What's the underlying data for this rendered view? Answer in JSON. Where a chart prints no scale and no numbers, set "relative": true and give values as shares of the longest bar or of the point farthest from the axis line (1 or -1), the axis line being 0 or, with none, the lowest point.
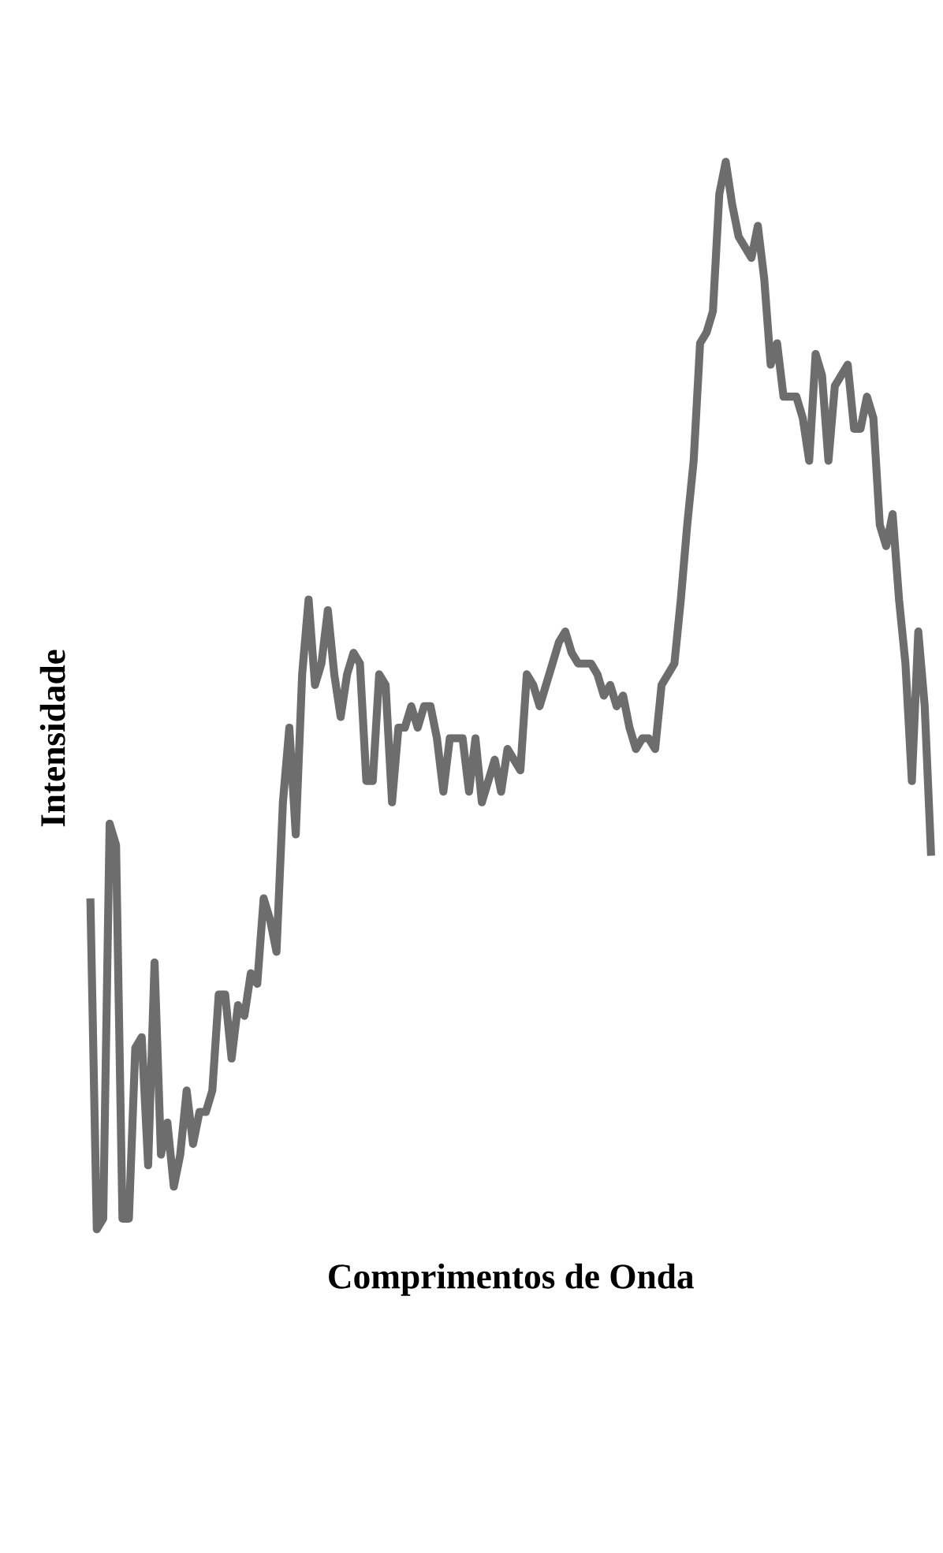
{
  "chart_data": {
    "type": "line",
    "relative": true,
    "xlabel": "Comprimentos de Onda",
    "ylabel": "Intensidade",
    "categories": [
      null,
      null,
      null,
      null,
      null,
      null,
      null,
      null,
      null,
      null,
      null,
      null,
      null,
      null,
      null,
      null,
      null,
      null,
      null,
      null,
      null,
      null,
      null,
      null,
      null,
      null,
      null,
      null,
      null,
      null,
      null,
      null,
      null,
      null,
      null,
      null,
      null,
      null,
      null,
      null,
      null,
      null,
      null,
      null,
      null,
      null,
      null,
      null,
      null,
      null,
      null,
      null,
      null,
      null,
      null,
      null,
      null,
      null,
      null,
      null,
      null,
      null,
      null,
      null,
      null,
      null,
      null,
      null,
      null,
      null,
      null,
      null,
      null,
      null,
      null,
      null,
      null,
      null,
      null,
      null,
      null,
      null,
      null,
      null,
      null,
      null,
      null,
      null,
      null,
      null,
      null,
      null,
      null,
      null,
      null,
      null,
      null,
      null,
      null,
      null,
      null,
      null,
      null,
      null,
      null,
      null,
      null,
      null,
      null,
      null,
      null,
      null,
      null,
      null,
      null,
      null,
      null,
      null,
      null,
      null,
      null,
      null,
      null,
      null,
      null,
      null,
      null,
      null,
      null,
      null,
      null,
      null
    ],
    "series": [
      {
        "color": "#6d6d6d",
        "values": [
          0.31,
          0,
          0.01,
          0.38,
          0.36,
          0.01,
          0.01,
          0.17,
          0.18,
          0.06,
          0.25,
          0.07,
          0.1,
          0.04,
          0.07,
          0.13,
          0.08,
          0.11,
          0.11,
          0.13,
          0.22,
          0.22,
          0.16,
          0.21,
          0.2,
          0.24,
          0.23,
          0.31,
          0.29,
          0.26,
          0.4,
          0.47,
          0.37,
          0.52,
          0.59,
          0.51,
          0.53,
          0.58,
          0.52,
          0.48,
          0.52,
          0.54,
          0.53,
          0.42,
          0.42,
          0.52,
          0.51,
          0.4,
          0.47,
          0.47,
          0.49,
          0.47,
          0.49,
          0.49,
          0.46,
          0.41,
          0.46,
          0.46,
          0.46,
          0.41,
          0.46,
          0.4,
          0.42,
          0.44,
          0.41,
          0.45,
          0.44,
          0.43,
          0.52,
          0.51,
          0.49,
          0.51,
          0.53,
          0.55,
          0.56,
          0.54,
          0.53,
          0.53,
          0.53,
          0.52,
          0.5,
          0.51,
          0.49,
          0.5,
          0.47,
          0.45,
          0.46,
          0.46,
          0.45,
          0.51,
          0.52,
          0.53,
          0.59,
          0.66,
          0.72,
          0.83,
          0.84,
          0.86,
          0.97,
          1,
          0.96,
          0.93,
          0.92,
          0.91,
          0.94,
          0.89,
          0.81,
          0.83,
          0.78,
          0.78,
          0.78,
          0.76,
          0.72,
          0.82,
          0.8,
          0.72,
          0.79,
          0.8,
          0.81,
          0.75,
          0.75,
          0.78,
          0.76,
          0.66,
          0.64,
          0.67,
          0.59,
          0.53,
          0.42,
          0.56,
          0.49,
          0.35
        ]
      }
    ]
  }
}
